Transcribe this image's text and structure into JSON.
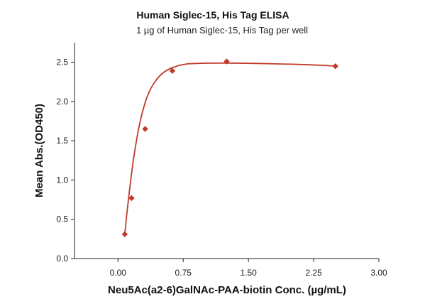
{
  "chart_data": {
    "type": "scatter",
    "title": "Human Siglec-15, His Tag ELISA",
    "subtitle": "1 µg of Human Siglec-15, His Tag per well",
    "xlabel": "Neu5Ac(a2-6)GalNAc-PAA-biotin Conc. (µg/mL)",
    "ylabel": "Mean Abs.(OD450)",
    "xlim": [
      -0.5,
      3.0
    ],
    "ylim": [
      0.0,
      2.75
    ],
    "xticks": [
      0.0,
      0.75,
      1.5,
      2.25,
      3.0
    ],
    "xtick_labels": [
      "0.00",
      "0.75",
      "1.50",
      "2.25",
      "3.00"
    ],
    "yticks": [
      0.0,
      0.5,
      1.0,
      1.5,
      2.0,
      2.5
    ],
    "ytick_labels": [
      "0.0",
      "0.5",
      "1.0",
      "1.5",
      "2.0",
      "2.5"
    ],
    "grid": false,
    "legend": false,
    "series": [
      {
        "marker": "diamond",
        "color": "#c0392b",
        "x": [
          0.078,
          0.156,
          0.3125,
          0.625,
          1.25,
          2.5
        ],
        "y": [
          0.31,
          0.77,
          1.65,
          2.39,
          2.51,
          2.45
        ]
      }
    ],
    "fit_curve": {
      "color": "#c0392b",
      "x": [
        0.078,
        0.1,
        0.125,
        0.15,
        0.175,
        0.2,
        0.225,
        0.25,
        0.275,
        0.3,
        0.325,
        0.35,
        0.375,
        0.4,
        0.45,
        0.5,
        0.55,
        0.6,
        0.65,
        0.7,
        0.75,
        0.8,
        0.9,
        1.0,
        1.1,
        1.25,
        1.4,
        1.6,
        1.8,
        2.0,
        2.2,
        2.4,
        2.5
      ],
      "y": [
        0.31,
        0.55,
        0.8,
        1.03,
        1.24,
        1.42,
        1.58,
        1.72,
        1.84,
        1.94,
        2.03,
        2.1,
        2.16,
        2.21,
        2.29,
        2.35,
        2.39,
        2.42,
        2.44,
        2.46,
        2.47,
        2.48,
        2.485,
        2.488,
        2.489,
        2.489,
        2.488,
        2.485,
        2.48,
        2.475,
        2.468,
        2.458,
        2.45
      ]
    }
  }
}
